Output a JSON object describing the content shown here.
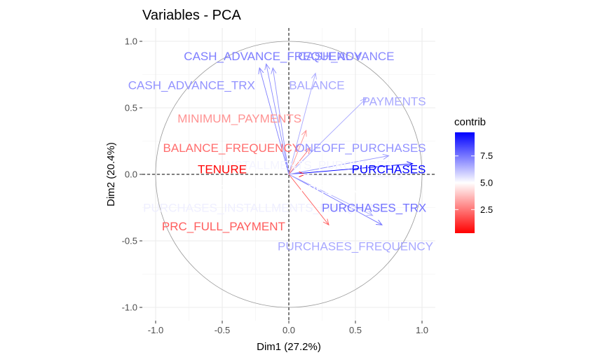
{
  "chart_data": {
    "type": "scatter",
    "title": "Variables - PCA",
    "xlabel": "Dim1 (27.2%)",
    "ylabel": "Dim2 (20.4%)",
    "xlim": [
      -1.1,
      1.1
    ],
    "ylim": [
      -1.1,
      1.1
    ],
    "x_ticks": [
      -1.0,
      -0.5,
      0.0,
      0.5,
      1.0
    ],
    "x_tick_labels": [
      "-1.0",
      "-0.5",
      "0.0",
      "0.5",
      "1.0"
    ],
    "y_ticks": [
      -1.0,
      -0.5,
      0.0,
      0.5,
      1.0
    ],
    "y_tick_labels": [
      "-1.0",
      "-0.5",
      "0.0",
      "0.5",
      "1.0"
    ],
    "grid": true,
    "unit_circle": true,
    "legend": {
      "title": "contrib",
      "placement": "right",
      "min": 0.3,
      "max": 9.7,
      "ticks": [
        2.5,
        5.0,
        7.5
      ],
      "tick_labels": [
        "2.5",
        "5.0",
        "7.5"
      ],
      "colors": {
        "low": "#ff0000",
        "mid": "#ffffff",
        "high": "#0000ff",
        "midpoint": 5.0
      }
    },
    "variables": [
      {
        "name": "CASH_ADVANCE_FREQUENCY",
        "x": -0.22,
        "y": 0.8,
        "contrib": 7.4
      },
      {
        "name": "CASH_ADVANCE",
        "x": -0.17,
        "y": 0.83,
        "contrib": 7.2
      },
      {
        "name": "CASH_ADVANCE_TRX",
        "x": -0.12,
        "y": 0.8,
        "contrib": 7.0
      },
      {
        "name": "BALANCE",
        "x": 0.2,
        "y": 0.76,
        "contrib": 6.6
      },
      {
        "name": "PAYMENTS",
        "x": 0.58,
        "y": 0.57,
        "contrib": 6.6
      },
      {
        "name": "MINIMUM_PAYMENTS",
        "x": 0.13,
        "y": 0.33,
        "contrib": 3.0
      },
      {
        "name": "BALANCE_FREQUENCY",
        "x": 0.16,
        "y": 0.2,
        "contrib": 2.3
      },
      {
        "name": "ONEOFF_PURCHASES",
        "x": 0.75,
        "y": 0.14,
        "contrib": 7.0
      },
      {
        "name": "INSTALLMENTS_PURCHASES",
        "x": 0.86,
        "y": 0.07,
        "contrib": 5.2
      },
      {
        "name": "PURCHASES",
        "x": 0.93,
        "y": 0.08,
        "contrib": 9.7
      },
      {
        "name": "TENURE",
        "x": 0.12,
        "y": 0.0,
        "contrib": 0.4
      },
      {
        "name": "ONEOFF_PURCHASES_FREQUENCY",
        "x": 0.72,
        "y": 0.02,
        "contrib": 5.0
      },
      {
        "name": "PURCHASES_INSTALLMENTS_FREQUENCY",
        "x": 0.85,
        "y": -0.02,
        "contrib": 5.3
      },
      {
        "name": "PURCHASES_TRX",
        "x": 0.7,
        "y": -0.38,
        "contrib": 7.6
      },
      {
        "name": "PRC_FULL_PAYMENT",
        "x": 0.3,
        "y": -0.38,
        "contrib": 2.0
      },
      {
        "name": "PURCHASES_FREQUENCY",
        "x": 0.63,
        "y": -0.31,
        "contrib": 6.6
      }
    ]
  }
}
